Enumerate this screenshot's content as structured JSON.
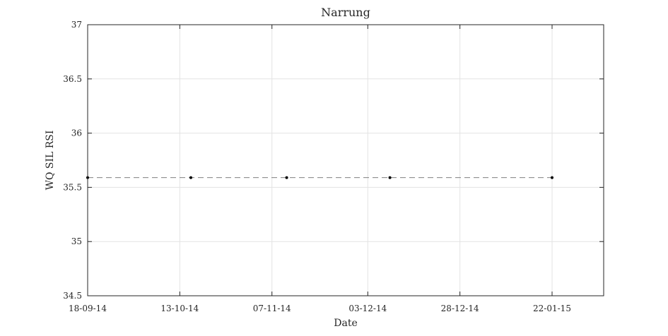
{
  "chart_data": {
    "type": "scatter",
    "title": "Narrung",
    "xlabel": "Date",
    "ylabel": "WQ SIL RSI",
    "x_tick_labels": [
      "18-09-14",
      "13-10-14",
      "07-11-14",
      "03-12-14",
      "28-12-14",
      "22-01-15"
    ],
    "x_ticks": [
      "2014-09-18",
      "2014-10-13",
      "2014-11-07",
      "2014-12-03",
      "2014-12-28",
      "2015-01-22"
    ],
    "xlim": [
      "2014-09-18",
      "2015-02-05"
    ],
    "ylim": [
      34.5,
      37
    ],
    "y_ticks": [
      34.5,
      35,
      35.5,
      36,
      36.5,
      37
    ],
    "y_tick_labels": [
      "34.5",
      "35",
      "35.5",
      "36",
      "36.5",
      "37"
    ],
    "grid": true,
    "series": [
      {
        "marker": "dot",
        "line": "dashed",
        "color": "#000000",
        "line_color": "#808080",
        "points": [
          {
            "x": "2014-09-18",
            "y": 35.59
          },
          {
            "x": "2014-10-16",
            "y": 35.59
          },
          {
            "x": "2014-11-11",
            "y": 35.59
          },
          {
            "x": "2014-12-09",
            "y": 35.59
          },
          {
            "x": "2015-01-22",
            "y": 35.59
          }
        ]
      }
    ]
  }
}
